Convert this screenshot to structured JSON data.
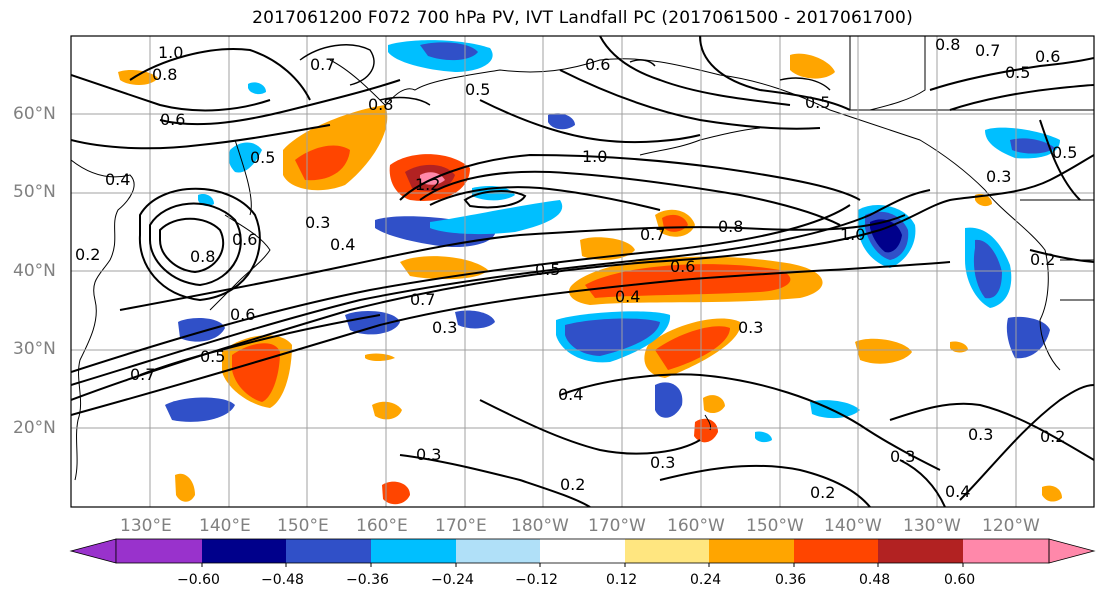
{
  "title": "2017061200 F072 700 hPa PV, IVT Landfall PC (2017061500 - 2017061700)",
  "lat_labels": [
    "60°N",
    "50°N",
    "40°N",
    "30°N",
    "20°N"
  ],
  "lon_labels": [
    "130°E",
    "140°E",
    "150°E",
    "160°E",
    "170°E",
    "180°W",
    "170°W",
    "160°W",
    "150°W",
    "140°W",
    "130°W",
    "120°W"
  ],
  "contour_labels": [
    "1.0",
    "0.8",
    "0.6",
    "0.5",
    "0.7",
    "0.8",
    "0.6",
    "0.7",
    "0.5",
    "0.4",
    "0.6",
    "0.3",
    "0.5",
    "0.8",
    "1.0",
    "1.2",
    "0.8",
    "1.0",
    "0.7",
    "0.6",
    "0.4",
    "0.5",
    "0.4",
    "0.3",
    "0.3",
    "0.4",
    "0.3",
    "0.3",
    "0.2",
    "0.2",
    "0.2",
    "0.3",
    "0.3",
    "0.2",
    "0.8",
    "0.7",
    "0.6",
    "0.5",
    "0.3",
    "0.5",
    "0.2",
    "0.6",
    "0.5",
    "0.7",
    "0.4"
  ],
  "colorbar": {
    "ticks": [
      "−0.60",
      "−0.48",
      "−0.36",
      "−0.24",
      "−0.12",
      "0.12",
      "0.24",
      "0.36",
      "0.48",
      "0.60"
    ],
    "colors": [
      "#9932cc",
      "#00008b",
      "#3050c8",
      "#00bfff",
      "#b0e0f8",
      "#ffffff",
      "#ffe680",
      "#ffa500",
      "#ff4500",
      "#b22222",
      "#ff88aa"
    ]
  },
  "colors": {
    "pos_1": "#ffa500",
    "pos_2": "#ff4500",
    "pos_3": "#b22222",
    "pos_4": "#ff88aa",
    "neg_1": "#00bfff",
    "neg_2": "#3050c8",
    "neg_3": "#00008b",
    "weak_pos": "#ffe680",
    "weak_neg": "#b0e0f8"
  }
}
